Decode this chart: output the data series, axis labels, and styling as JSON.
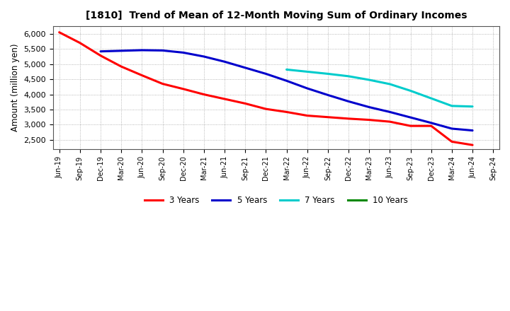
{
  "title": "[1810]  Trend of Mean of 12-Month Moving Sum of Ordinary Incomes",
  "ylabel": "Amount (million yen)",
  "background_color": "#ffffff",
  "plot_background": "#ffffff",
  "x_labels": [
    "Jun-19",
    "Sep-19",
    "Dec-19",
    "Mar-20",
    "Jun-20",
    "Sep-20",
    "Dec-20",
    "Mar-21",
    "Jun-21",
    "Sep-21",
    "Dec-21",
    "Mar-22",
    "Jun-22",
    "Sep-22",
    "Dec-22",
    "Mar-23",
    "Jun-23",
    "Sep-23",
    "Dec-23",
    "Mar-24",
    "Jun-24",
    "Sep-24"
  ],
  "series": {
    "3 Years": {
      "color": "#ff0000",
      "data_x": [
        0,
        1,
        2,
        3,
        4,
        5,
        6,
        7,
        8,
        9,
        10,
        11,
        12,
        13,
        14,
        15,
        16,
        17,
        18,
        19,
        20
      ],
      "data_y": [
        6050,
        5700,
        5280,
        4920,
        4630,
        4350,
        4180,
        4000,
        3850,
        3700,
        3520,
        3420,
        3300,
        3250,
        3200,
        3160,
        3100,
        2960,
        2960,
        2440,
        2330
      ]
    },
    "5 Years": {
      "color": "#0000cc",
      "data_x": [
        2,
        3,
        4,
        5,
        6,
        7,
        8,
        9,
        10,
        11,
        12,
        13,
        14,
        15,
        16,
        17,
        18,
        19,
        20
      ],
      "data_y": [
        5420,
        5440,
        5460,
        5450,
        5380,
        5250,
        5080,
        4880,
        4680,
        4450,
        4200,
        3980,
        3770,
        3580,
        3420,
        3240,
        3060,
        2870,
        2810
      ]
    },
    "7 Years": {
      "color": "#00cccc",
      "data_x": [
        11,
        12,
        13,
        14,
        15,
        16,
        17,
        18,
        19,
        20
      ],
      "data_y": [
        4820,
        4750,
        4680,
        4600,
        4480,
        4340,
        4120,
        3870,
        3620,
        3600
      ]
    },
    "10 Years": {
      "color": "#008800",
      "data_x": [],
      "data_y": []
    }
  },
  "ylim": [
    2200,
    6250
  ],
  "yticks": [
    2500,
    3000,
    3500,
    4000,
    4500,
    5000,
    5500,
    6000
  ],
  "grid_color": "#999999",
  "legend_labels": [
    "3 Years",
    "5 Years",
    "7 Years",
    "10 Years"
  ],
  "legend_colors": [
    "#ff0000",
    "#0000cc",
    "#00cccc",
    "#008800"
  ]
}
